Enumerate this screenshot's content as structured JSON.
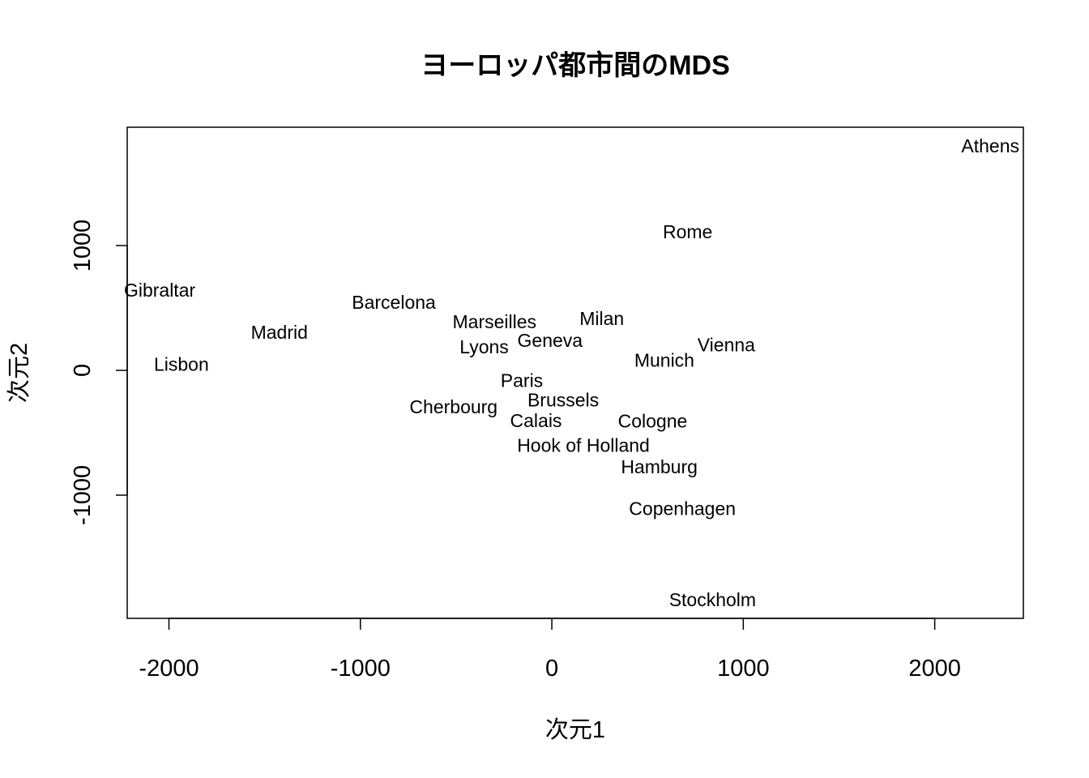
{
  "chart_data": {
    "type": "scatter",
    "title": "ヨーロッパ都市間のMDS",
    "xlabel": "次元1",
    "ylabel": "次元2",
    "xlim": [
      -2218,
      2463
    ],
    "ylim": [
      -1987,
      1948
    ],
    "xticks": [
      -2000,
      -1000,
      0,
      1000,
      2000
    ],
    "yticks": [
      -1000,
      0,
      1000
    ],
    "grid": false,
    "points": [
      {
        "label": "Athens",
        "x": 2290.27,
        "y": 1798.8
      },
      {
        "label": "Barcelona",
        "x": -825.38,
        "y": 546.81
      },
      {
        "label": "Brussels",
        "x": 59.18,
        "y": -367.08
      },
      {
        "label": "Calais",
        "x": -82.85,
        "y": -429.91
      },
      {
        "label": "Cherbourg",
        "x": -352.5,
        "y": -290.91
      },
      {
        "label": "Cologne",
        "x": 293.69,
        "y": -405.31
      },
      {
        "label": "Copenhagen",
        "x": 681.93,
        "y": -1108.64
      },
      {
        "label": "Geneva",
        "x": -9.42,
        "y": 240.41
      },
      {
        "label": "Gibraltar",
        "x": -2048.45,
        "y": 642.46
      },
      {
        "label": "Hamburg",
        "x": 561.11,
        "y": -773.37
      },
      {
        "label": "Hook of Holland",
        "x": 164.92,
        "y": -549.37
      },
      {
        "label": "Lisbon",
        "x": -1935.04,
        "y": 49.12
      },
      {
        "label": "Lyons",
        "x": -226.42,
        "y": 187.09
      },
      {
        "label": "Madrid",
        "x": -1423.35,
        "y": 305.88
      },
      {
        "label": "Marseilles",
        "x": -299.5,
        "y": 388.81
      },
      {
        "label": "Milan",
        "x": 260.88,
        "y": 416.67
      },
      {
        "label": "Munich",
        "x": 587.68,
        "y": 81.18
      },
      {
        "label": "Paris",
        "x": -156.84,
        "y": -211.14
      },
      {
        "label": "Rome",
        "x": 709.41,
        "y": 1109.36
      },
      {
        "label": "Stockholm",
        "x": 839.45,
        "y": -1836.79
      },
      {
        "label": "Vienna",
        "x": 911.23,
        "y": 205.93
      }
    ]
  }
}
